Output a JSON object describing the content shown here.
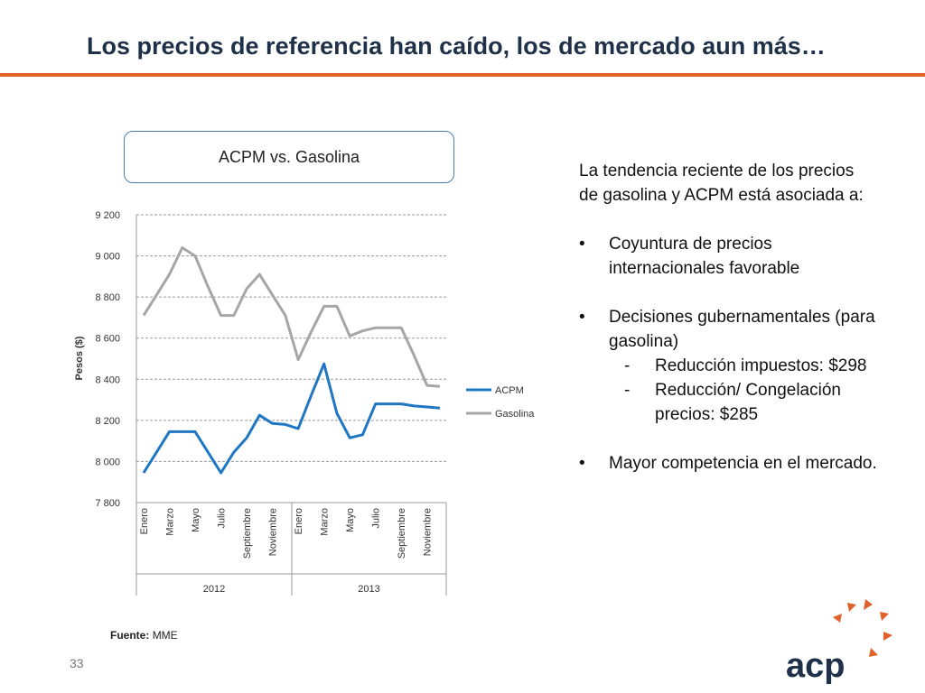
{
  "slide": {
    "title": "Los precios de referencia han caído, los de mercado aun más…",
    "page_number": "33",
    "source_label": "Fuente:",
    "source_value": "MME",
    "logo_text": "acp"
  },
  "colors": {
    "accent": "#e0622a",
    "title": "#1f3148",
    "acpm": "#1f77c4",
    "gasolina": "#a6a6a6"
  },
  "chart_box_title": "ACPM vs. Gasolina",
  "right_text": {
    "intro": "La tendencia reciente de los precios de gasolina y ACPM está asociada a:",
    "bullets": [
      "Coyuntura de precios internacionales favorable",
      "Decisiones gubernamentales (para gasolina)",
      "Mayor competencia en el mercado."
    ],
    "subbullets": [
      "Reducción impuestos: $298",
      "Reducción/ Congelación precios: $285"
    ]
  },
  "chart_data": {
    "type": "line",
    "title": "ACPM vs. Gasolina",
    "xlabel": "",
    "ylabel": "Pesos ($)",
    "ylim": [
      7800,
      9200
    ],
    "yticks": [
      7800,
      8000,
      8200,
      8400,
      8600,
      8800,
      9000,
      9200
    ],
    "ytick_labels": [
      "7 800",
      "8 000",
      "8 200",
      "8 400",
      "8 600",
      "8 800",
      "9 000",
      "9 200"
    ],
    "grid": true,
    "legend": "right",
    "x_tick_labels": [
      "Enero",
      "Marzo",
      "Mayo",
      "Julio",
      "Septiembre",
      "Noviembre",
      "Enero",
      "Marzo",
      "Mayo",
      "Julio",
      "Septiembre",
      "Noviembre"
    ],
    "years": [
      {
        "label": "2012",
        "start": 0,
        "end": 11
      },
      {
        "label": "2013",
        "start": 12,
        "end": 23
      }
    ],
    "series": [
      {
        "name": "ACPM",
        "color": "#1f77c4",
        "values": [
          7945,
          8045,
          8145,
          8145,
          8145,
          8045,
          7945,
          8045,
          8115,
          8225,
          8185,
          8180,
          8160,
          8320,
          8475,
          8235,
          8115,
          8130,
          8280,
          8280,
          8280,
          8270,
          8265,
          8260
        ]
      },
      {
        "name": "Gasolina",
        "color": "#a6a6a6",
        "values": [
          8710,
          8810,
          8910,
          9040,
          9000,
          8850,
          8710,
          8710,
          8840,
          8910,
          8810,
          8710,
          8495,
          8630,
          8755,
          8755,
          8610,
          8635,
          8650,
          8650,
          8650,
          8515,
          8370,
          8365
        ]
      }
    ]
  }
}
